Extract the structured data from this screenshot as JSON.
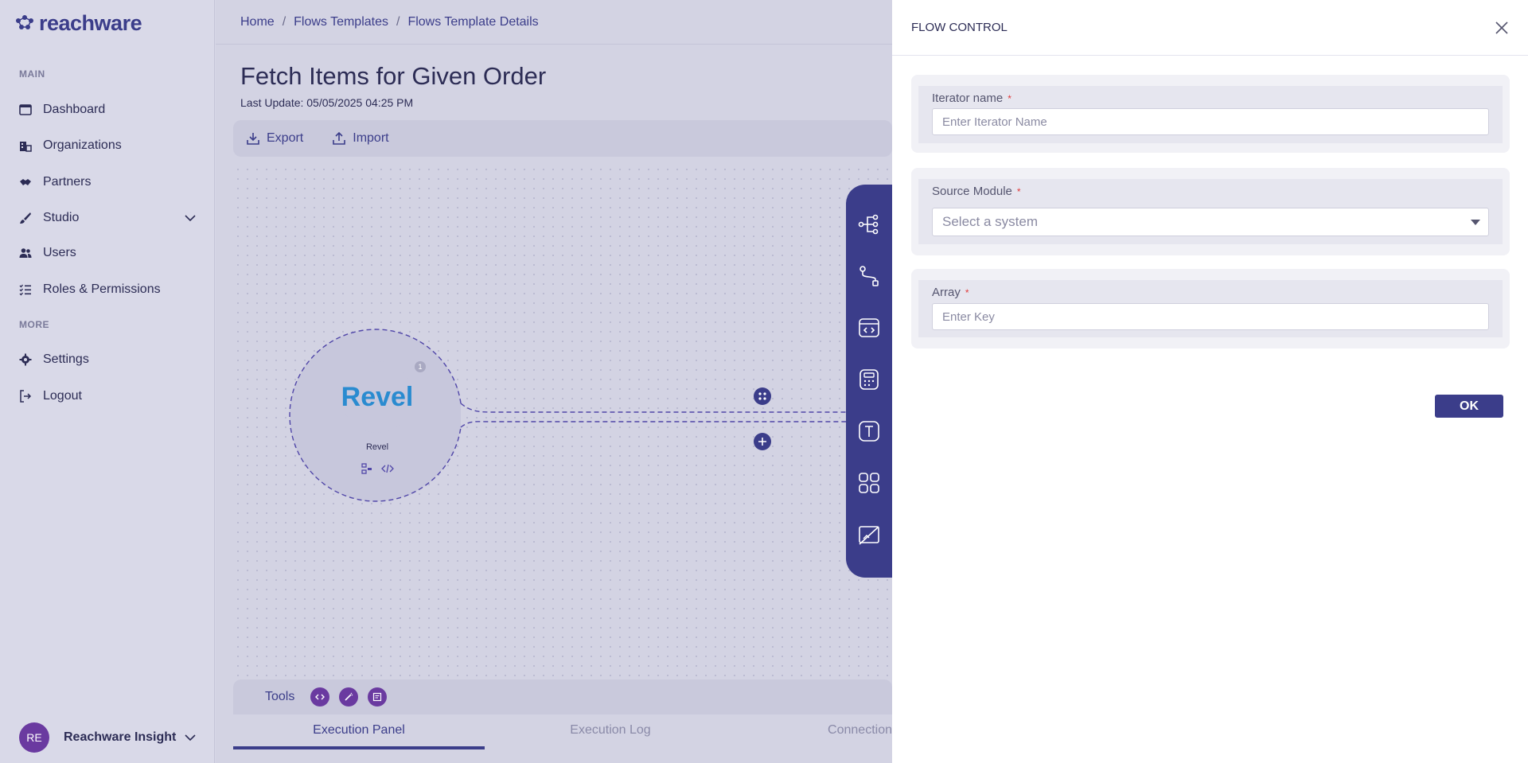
{
  "app": {
    "logo_text": "reachware"
  },
  "sidebar": {
    "section_main": "MAIN",
    "section_more": "MORE",
    "items": [
      {
        "label": "Dashboard",
        "icon": "dashboard-icon"
      },
      {
        "label": "Organizations",
        "icon": "organizations-icon"
      },
      {
        "label": "Partners",
        "icon": "handshake-icon"
      },
      {
        "label": "Studio",
        "icon": "brush-icon"
      },
      {
        "label": "Users",
        "icon": "users-icon"
      },
      {
        "label": "Roles & Permissions",
        "icon": "list-check-icon"
      }
    ],
    "more_items": [
      {
        "label": "Settings",
        "icon": "gear-icon"
      },
      {
        "label": "Logout",
        "icon": "logout-icon"
      }
    ],
    "user": {
      "initials": "RE",
      "name": "Reachware Insight"
    }
  },
  "breadcrumb": [
    "Home",
    "Flows Templates",
    "Flows Template Details"
  ],
  "page": {
    "title": "Fetch Items for Given Order",
    "last_update": "Last Update: 05/05/2025 04:25 PM"
  },
  "toolbar": {
    "export_label": "Export",
    "import_label": "Import"
  },
  "canvas": {
    "node": {
      "logo_text": "Revel",
      "label": "Revel",
      "badge": "1"
    }
  },
  "bottom": {
    "tools_label": "Tools",
    "tabs": [
      "Execution Panel",
      "Execution Log",
      "Connection"
    ]
  },
  "panel": {
    "title": "FLOW CONTROL",
    "fields": {
      "iterator_name": {
        "label": "Iterator name",
        "required": "*",
        "placeholder": "Enter Iterator Name",
        "value": ""
      },
      "source_module": {
        "label": "Source Module",
        "required": "*",
        "placeholder": "Select a system"
      },
      "array": {
        "label": "Array",
        "required": "*",
        "placeholder": "Enter Key",
        "value": ""
      }
    },
    "ok_label": "OK"
  },
  "colors": {
    "primary": "#3b3d8a",
    "accent_purple": "#6a3aa0",
    "required": "#e03a3a"
  }
}
